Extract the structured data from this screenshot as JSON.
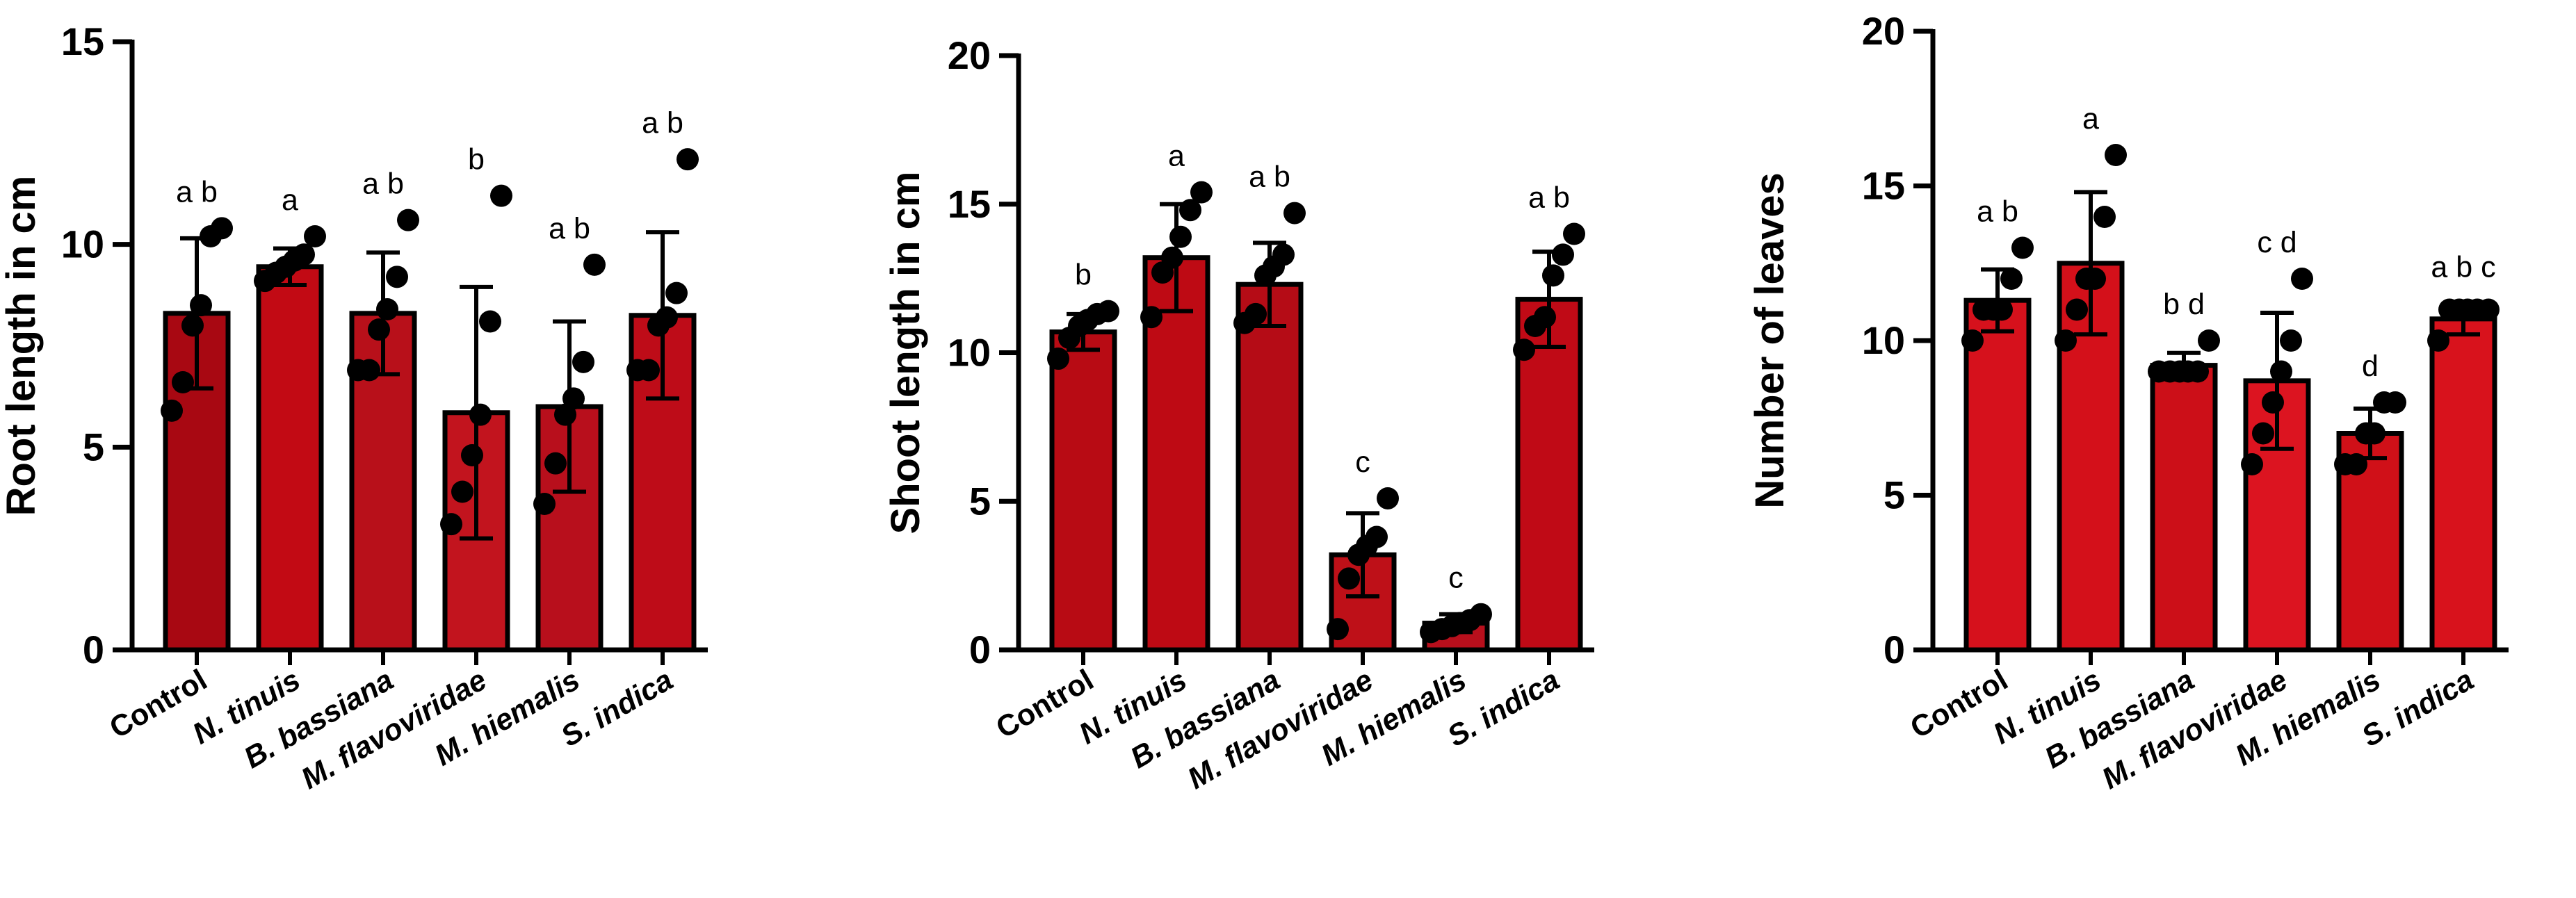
{
  "chart_data": [
    {
      "type": "bar",
      "ylabel": "Root length in cm",
      "ylim": [
        0,
        15
      ],
      "yticks": [
        0,
        5,
        10,
        15
      ],
      "categories": [
        "Control",
        "N. tinuis",
        "B. bassiana",
        "M. flavoviridae",
        "M. hiemalis",
        "S. indica"
      ],
      "italic": [
        false,
        true,
        true,
        true,
        true,
        true
      ],
      "values": [
        8.3,
        9.45,
        8.3,
        5.85,
        6.0,
        8.25
      ],
      "sd": [
        1.85,
        0.45,
        1.5,
        3.1,
        2.1,
        2.05
      ],
      "letters": [
        "a b",
        "a",
        "a b",
        "b",
        "a b",
        "a b"
      ],
      "points": [
        [
          5.9,
          6.6,
          8.0,
          8.5,
          10.2,
          10.4
        ],
        [
          9.1,
          9.3,
          9.45,
          9.6,
          9.75,
          10.2
        ],
        [
          6.9,
          6.9,
          7.9,
          8.4,
          9.2,
          10.6
        ],
        [
          3.1,
          3.9,
          4.8,
          5.8,
          8.1,
          11.2
        ],
        [
          3.6,
          4.6,
          5.8,
          6.2,
          7.1,
          9.5
        ],
        [
          6.9,
          6.9,
          8.0,
          8.2,
          8.8,
          12.1
        ]
      ],
      "bar_colors": [
        "#a80812",
        "#c20a14",
        "#b8101a",
        "#c2141e",
        "#b80f1c",
        "#be0c18"
      ],
      "grid": false
    },
    {
      "type": "bar",
      "ylabel": "Shoot length in cm",
      "ylim": [
        0,
        20
      ],
      "yticks": [
        0,
        5,
        10,
        15,
        20
      ],
      "categories": [
        "Control",
        "N. tinuis",
        "B. bassiana",
        "M. flavoviridae",
        "M. hiemalis",
        "S. indica"
      ],
      "italic": [
        false,
        true,
        true,
        true,
        true,
        true
      ],
      "values": [
        10.7,
        13.2,
        12.3,
        3.2,
        0.9,
        11.8
      ],
      "sd": [
        0.6,
        1.8,
        1.4,
        1.4,
        0.3,
        1.6
      ],
      "letters": [
        "b",
        "a",
        "a b",
        "c",
        "c",
        "a b"
      ],
      "points": [
        [
          9.8,
          10.5,
          10.9,
          11.1,
          11.3,
          11.4
        ],
        [
          11.2,
          12.7,
          13.2,
          13.9,
          14.8,
          15.4
        ],
        [
          11.0,
          11.3,
          12.6,
          12.9,
          13.3,
          14.7
        ],
        [
          0.7,
          2.4,
          3.2,
          3.5,
          3.8,
          5.1
        ],
        [
          0.6,
          0.7,
          0.8,
          0.9,
          1.0,
          1.2
        ],
        [
          10.1,
          10.9,
          11.2,
          12.6,
          13.3,
          14.0
        ]
      ],
      "bar_colors": [
        "#b80b14",
        "#be0a14",
        "#b50c16",
        "#be1018",
        "#b80f1c",
        "#c00a16"
      ],
      "grid": false
    },
    {
      "type": "bar",
      "ylabel": "Number of leaves",
      "ylim": [
        0,
        20
      ],
      "yticks": [
        0,
        5,
        10,
        15,
        20
      ],
      "categories": [
        "Control",
        "N. tinuis",
        "B. bassiana",
        "M. flavoviridae",
        "M. hiemalis",
        "S. indica"
      ],
      "italic": [
        false,
        true,
        true,
        true,
        true,
        true
      ],
      "values": [
        11.3,
        12.5,
        9.2,
        8.7,
        7.0,
        10.7
      ],
      "sd": [
        1.0,
        2.3,
        0.4,
        2.2,
        0.8,
        0.5
      ],
      "letters": [
        "a b",
        "a",
        "b d",
        "c d",
        "d",
        "a b c"
      ],
      "points": [
        [
          10.0,
          11.0,
          11.0,
          11.0,
          12.0,
          13.0
        ],
        [
          10.0,
          11.0,
          12.0,
          12.0,
          14.0,
          16.0
        ],
        [
          9.0,
          9.0,
          9.0,
          9.0,
          9.0,
          10.0
        ],
        [
          6.0,
          7.0,
          8.0,
          9.0,
          10.0,
          12.0
        ],
        [
          6.0,
          6.0,
          7.0,
          7.0,
          8.0,
          8.0
        ],
        [
          10.0,
          11.0,
          11.0,
          11.0,
          11.0,
          11.0
        ]
      ],
      "bar_colors": [
        "#d6111c",
        "#d4101a",
        "#cc0f18",
        "#dc1420",
        "#d01018",
        "#d8121c"
      ],
      "grid": false
    }
  ]
}
